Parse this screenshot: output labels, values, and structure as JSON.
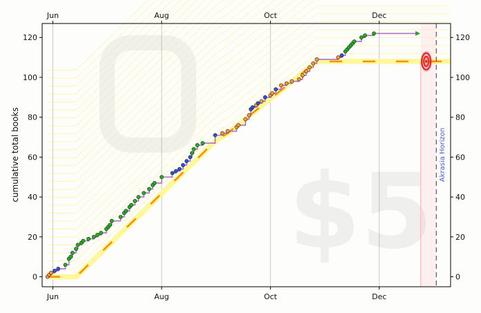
{
  "chart_data": {
    "type": "line",
    "ylabel": "cumulative total books",
    "ylim": [
      -5,
      127
    ],
    "yticks": [
      0,
      20,
      40,
      60,
      80,
      100,
      120
    ],
    "xlim": [
      "2023-05-26",
      "2024-01-10"
    ],
    "xticks": [
      {
        "date": "2023-06-01",
        "label": "Jun"
      },
      {
        "date": "2023-08-01",
        "label": "Aug"
      },
      {
        "date": "2023-10-01",
        "label": "Oct"
      },
      {
        "date": "2023-12-01",
        "label": "Dec"
      }
    ],
    "grid": true,
    "watermark_text": "$5",
    "horizon_label": "Akrasia Horizon",
    "horizon_date": "2024-01-02",
    "goal": {
      "date": "2023-12-25",
      "value": 108
    },
    "colors": {
      "datapoint": "#1fb31f",
      "step_line": "#b070c8",
      "road": "#fff79a",
      "road_center": "#ff8c00",
      "horizon": "#4a5cd8",
      "projection": "#2ca02c",
      "target": "#e0202a"
    },
    "road": [
      [
        "2023-05-29",
        0
      ],
      [
        "2023-06-14",
        0
      ],
      [
        "2023-08-31",
        68
      ],
      [
        "2023-09-07",
        72
      ],
      [
        "2023-10-27",
        108
      ],
      [
        "2024-01-10",
        108
      ]
    ],
    "projection": [
      [
        "2023-11-28",
        122
      ],
      [
        "2023-12-24",
        122
      ]
    ],
    "datapoints": [
      [
        "2023-05-29",
        0
      ],
      [
        "2023-05-30",
        1
      ],
      [
        "2023-05-31",
        2
      ],
      [
        "2023-06-02",
        3
      ],
      [
        "2023-06-04",
        4
      ],
      [
        "2023-06-08",
        6
      ],
      [
        "2023-06-10",
        9
      ],
      [
        "2023-06-11",
        10
      ],
      [
        "2023-06-12",
        12
      ],
      [
        "2023-06-14",
        14
      ],
      [
        "2023-06-15",
        16
      ],
      [
        "2023-06-17",
        17
      ],
      [
        "2023-06-18",
        18
      ],
      [
        "2023-06-21",
        19
      ],
      [
        "2023-06-24",
        20
      ],
      [
        "2023-06-26",
        21
      ],
      [
        "2023-06-28",
        22
      ],
      [
        "2023-07-01",
        24
      ],
      [
        "2023-07-02",
        25
      ],
      [
        "2023-07-03",
        26
      ],
      [
        "2023-07-04",
        28
      ],
      [
        "2023-07-09",
        30
      ],
      [
        "2023-07-11",
        32
      ],
      [
        "2023-07-12",
        33
      ],
      [
        "2023-07-14",
        35
      ],
      [
        "2023-07-15",
        36
      ],
      [
        "2023-07-17",
        38
      ],
      [
        "2023-07-19",
        40
      ],
      [
        "2023-07-22",
        42
      ],
      [
        "2023-07-25",
        44
      ],
      [
        "2023-07-27",
        46
      ],
      [
        "2023-07-28",
        47
      ],
      [
        "2023-08-01",
        50
      ],
      [
        "2023-08-07",
        52
      ],
      [
        "2023-08-09",
        53
      ],
      [
        "2023-08-11",
        54
      ],
      [
        "2023-08-13",
        56
      ],
      [
        "2023-08-15",
        58
      ],
      [
        "2023-08-17",
        60
      ],
      [
        "2023-08-18",
        62
      ],
      [
        "2023-08-19",
        64
      ],
      [
        "2023-08-21",
        66
      ],
      [
        "2023-08-24",
        67
      ],
      [
        "2023-08-31",
        71
      ],
      [
        "2023-09-04",
        72
      ],
      [
        "2023-09-07",
        73
      ],
      [
        "2023-09-12",
        75
      ],
      [
        "2023-09-13",
        76
      ],
      [
        "2023-09-17",
        79
      ],
      [
        "2023-09-19",
        81
      ],
      [
        "2023-09-20",
        84
      ],
      [
        "2023-09-21",
        85
      ],
      [
        "2023-09-23",
        86
      ],
      [
        "2023-09-24",
        87
      ],
      [
        "2023-09-26",
        88
      ],
      [
        "2023-09-28",
        90
      ],
      [
        "2023-10-01",
        91
      ],
      [
        "2023-10-02",
        92
      ],
      [
        "2023-10-04",
        94
      ],
      [
        "2023-10-07",
        96
      ],
      [
        "2023-10-10",
        97
      ],
      [
        "2023-10-13",
        98
      ],
      [
        "2023-10-17",
        99
      ],
      [
        "2023-10-19",
        101
      ],
      [
        "2023-10-21",
        103
      ],
      [
        "2023-10-23",
        105
      ],
      [
        "2023-10-25",
        107
      ],
      [
        "2023-10-27",
        109
      ],
      [
        "2023-11-08",
        110
      ],
      [
        "2023-11-10",
        111
      ],
      [
        "2023-11-12",
        113
      ],
      [
        "2023-11-13",
        114
      ],
      [
        "2023-11-14",
        115
      ],
      [
        "2023-11-15",
        116
      ],
      [
        "2023-11-16",
        117
      ],
      [
        "2023-11-17",
        118
      ],
      [
        "2023-11-21",
        120
      ],
      [
        "2023-11-23",
        121
      ],
      [
        "2023-11-28",
        122
      ]
    ]
  }
}
